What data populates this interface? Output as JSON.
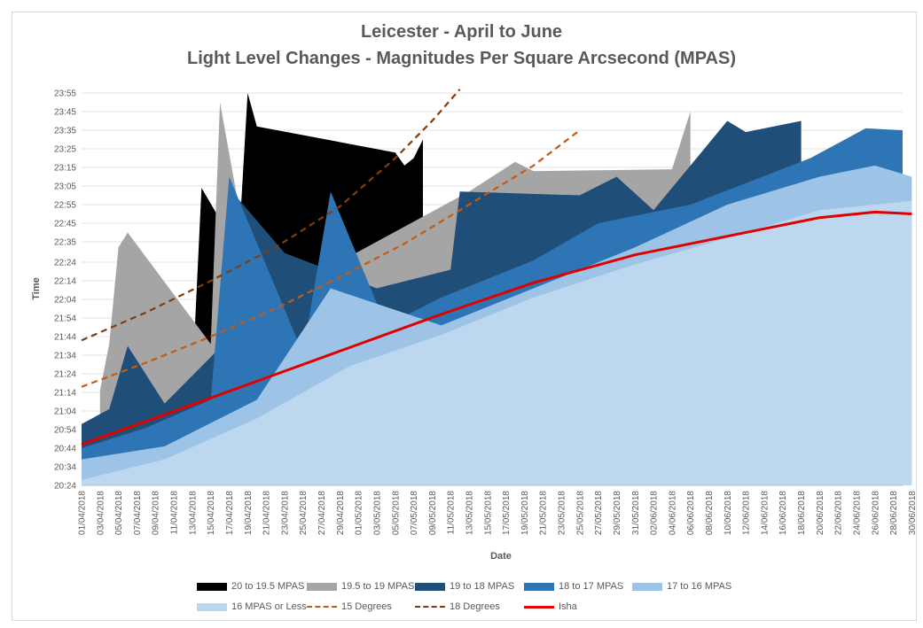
{
  "chart_data": {
    "type": "area",
    "title": "Leicester - April to June",
    "subtitle": "Light Level Changes - Magnitudes Per Square Arcsecond (MPAS)",
    "xlabel": "Date",
    "ylabel": "Time",
    "y_ticks": [
      "20:24",
      "20:34",
      "20:44",
      "20:54",
      "21:04",
      "21:14",
      "21:24",
      "21:34",
      "21:44",
      "21:54",
      "22:04",
      "22:14",
      "22:24",
      "22:35",
      "22:45",
      "22:55",
      "23:05",
      "23:15",
      "23:25",
      "23:35",
      "23:45",
      "23:55"
    ],
    "y_range_minutes": [
      1224,
      1435
    ],
    "x_tick_labels": [
      "01/04/2018",
      "03/04/2018",
      "05/04/2018",
      "07/04/2018",
      "09/04/2018",
      "11/04/2018",
      "13/04/2018",
      "15/04/2018",
      "17/04/2018",
      "19/04/2018",
      "21/04/2018",
      "23/04/2018",
      "25/04/2018",
      "27/04/2018",
      "29/04/2018",
      "01/05/2018",
      "03/05/2018",
      "05/05/2018",
      "07/05/2018",
      "09/05/2018",
      "11/05/2018",
      "13/05/2018",
      "15/05/2018",
      "17/05/2018",
      "19/05/2018",
      "21/05/2018",
      "23/05/2018",
      "25/05/2018",
      "27/05/2018",
      "29/05/2018",
      "31/05/2018",
      "02/06/2018",
      "04/06/2018",
      "06/06/2018",
      "08/06/2018",
      "10/06/2018",
      "12/06/2018",
      "14/06/2018",
      "16/06/2018",
      "18/06/2018",
      "20/06/2018",
      "22/06/2018",
      "24/06/2018",
      "26/06/2018",
      "28/06/2018",
      "30/06/2018"
    ],
    "grid": true,
    "legend_position": "bottom",
    "series": [
      {
        "name": "20 to 19.5 MPAS",
        "color": "#000000",
        "kind": "area",
        "points": [
          [
            "2018-04-11",
            1266
          ],
          [
            "2018-04-12",
            1273
          ],
          [
            "2018-04-13",
            1280
          ],
          [
            "2018-04-14",
            1384
          ],
          [
            "2018-04-18",
            1350
          ],
          [
            "2018-04-19",
            1435
          ],
          [
            "2018-04-20",
            1417
          ],
          [
            "2018-05-05",
            1403
          ],
          [
            "2018-05-06",
            1396
          ],
          [
            "2018-05-07",
            1400
          ],
          [
            "2018-05-08",
            1410
          ]
        ]
      },
      {
        "name": "19.5 to 19 MPAS",
        "color": "#a5a5a5",
        "kind": "area",
        "points": [
          [
            "2018-04-03",
            1275
          ],
          [
            "2018-04-04",
            1300
          ],
          [
            "2018-04-05",
            1352
          ],
          [
            "2018-04-06",
            1360
          ],
          [
            "2018-04-15",
            1300
          ],
          [
            "2018-04-16",
            1430
          ],
          [
            "2018-04-20",
            1320
          ],
          [
            "2018-05-13",
            1382
          ],
          [
            "2018-05-18",
            1398
          ],
          [
            "2018-05-20",
            1393
          ],
          [
            "2018-06-04",
            1394
          ],
          [
            "2018-06-06",
            1425
          ]
        ]
      },
      {
        "name": "19 to 18 MPAS",
        "color": "#1f4e79",
        "kind": "area",
        "points": [
          [
            "2018-04-01",
            1257
          ],
          [
            "2018-04-04",
            1265
          ],
          [
            "2018-04-06",
            1299
          ],
          [
            "2018-04-10",
            1268
          ],
          [
            "2018-04-16",
            1298
          ],
          [
            "2018-04-18",
            1378
          ],
          [
            "2018-04-23",
            1349
          ],
          [
            "2018-05-03",
            1330
          ],
          [
            "2018-05-11",
            1340
          ],
          [
            "2018-05-12",
            1382
          ],
          [
            "2018-05-25",
            1380
          ],
          [
            "2018-05-29",
            1390
          ],
          [
            "2018-06-02",
            1372
          ],
          [
            "2018-06-10",
            1420
          ],
          [
            "2018-06-12",
            1414
          ],
          [
            "2018-06-18",
            1420
          ]
        ]
      },
      {
        "name": "18 to 17 MPAS",
        "color": "#2e75b6",
        "kind": "area",
        "points": [
          [
            "2018-04-01",
            1244
          ],
          [
            "2018-04-08",
            1255
          ],
          [
            "2018-04-15",
            1270
          ],
          [
            "2018-04-17",
            1390
          ],
          [
            "2018-04-25",
            1295
          ],
          [
            "2018-04-28",
            1382
          ],
          [
            "2018-05-04",
            1310
          ],
          [
            "2018-05-10",
            1325
          ],
          [
            "2018-05-20",
            1345
          ],
          [
            "2018-05-27",
            1365
          ],
          [
            "2018-06-06",
            1375
          ],
          [
            "2018-06-19",
            1400
          ],
          [
            "2018-06-25",
            1416
          ],
          [
            "2018-06-29",
            1415
          ]
        ]
      },
      {
        "name": "17 to 16 MPAS",
        "color": "#9dc3e6",
        "kind": "area",
        "points": [
          [
            "2018-04-01",
            1238
          ],
          [
            "2018-04-10",
            1245
          ],
          [
            "2018-04-20",
            1270
          ],
          [
            "2018-04-28",
            1330
          ],
          [
            "2018-05-10",
            1310
          ],
          [
            "2018-05-20",
            1330
          ],
          [
            "2018-05-31",
            1352
          ],
          [
            "2018-06-10",
            1375
          ],
          [
            "2018-06-20",
            1390
          ],
          [
            "2018-06-26",
            1396
          ],
          [
            "2018-06-30",
            1390
          ]
        ]
      },
      {
        "name": "16 MPAS or Less",
        "color": "#bdd7ee",
        "kind": "area",
        "points": [
          [
            "2018-04-01",
            1227
          ],
          [
            "2018-04-10",
            1238
          ],
          [
            "2018-04-20",
            1260
          ],
          [
            "2018-04-30",
            1288
          ],
          [
            "2018-05-10",
            1305
          ],
          [
            "2018-05-20",
            1325
          ],
          [
            "2018-05-31",
            1343
          ],
          [
            "2018-06-10",
            1357
          ],
          [
            "2018-06-20",
            1372
          ],
          [
            "2018-06-30",
            1377
          ]
        ]
      },
      {
        "name": "15 Degrees",
        "color": "#c55a11",
        "kind": "dashed",
        "points": [
          [
            "2018-04-01",
            1277
          ],
          [
            "2018-04-08",
            1290
          ],
          [
            "2018-04-15",
            1304
          ],
          [
            "2018-04-22",
            1319
          ],
          [
            "2018-04-29",
            1336
          ],
          [
            "2018-05-06",
            1354
          ],
          [
            "2018-05-13",
            1375
          ],
          [
            "2018-05-20",
            1396
          ],
          [
            "2018-05-25",
            1415
          ]
        ]
      },
      {
        "name": "18 Degrees",
        "color": "#843c0c",
        "kind": "dashed",
        "points": [
          [
            "2018-04-01",
            1302
          ],
          [
            "2018-04-08",
            1317
          ],
          [
            "2018-04-15",
            1334
          ],
          [
            "2018-04-22",
            1352
          ],
          [
            "2018-04-29",
            1374
          ],
          [
            "2018-05-05",
            1400
          ],
          [
            "2018-05-09",
            1420
          ],
          [
            "2018-05-12",
            1437
          ]
        ]
      },
      {
        "name": "Isha",
        "color": "#e00000",
        "kind": "line",
        "points": [
          [
            "2018-04-01",
            1246
          ],
          [
            "2018-04-10",
            1262
          ],
          [
            "2018-04-20",
            1280
          ],
          [
            "2018-04-30",
            1298
          ],
          [
            "2018-05-10",
            1316
          ],
          [
            "2018-05-20",
            1333
          ],
          [
            "2018-05-31",
            1348
          ],
          [
            "2018-06-10",
            1358
          ],
          [
            "2018-06-20",
            1368
          ],
          [
            "2018-06-26",
            1371
          ],
          [
            "2018-06-30",
            1370
          ]
        ]
      }
    ]
  }
}
